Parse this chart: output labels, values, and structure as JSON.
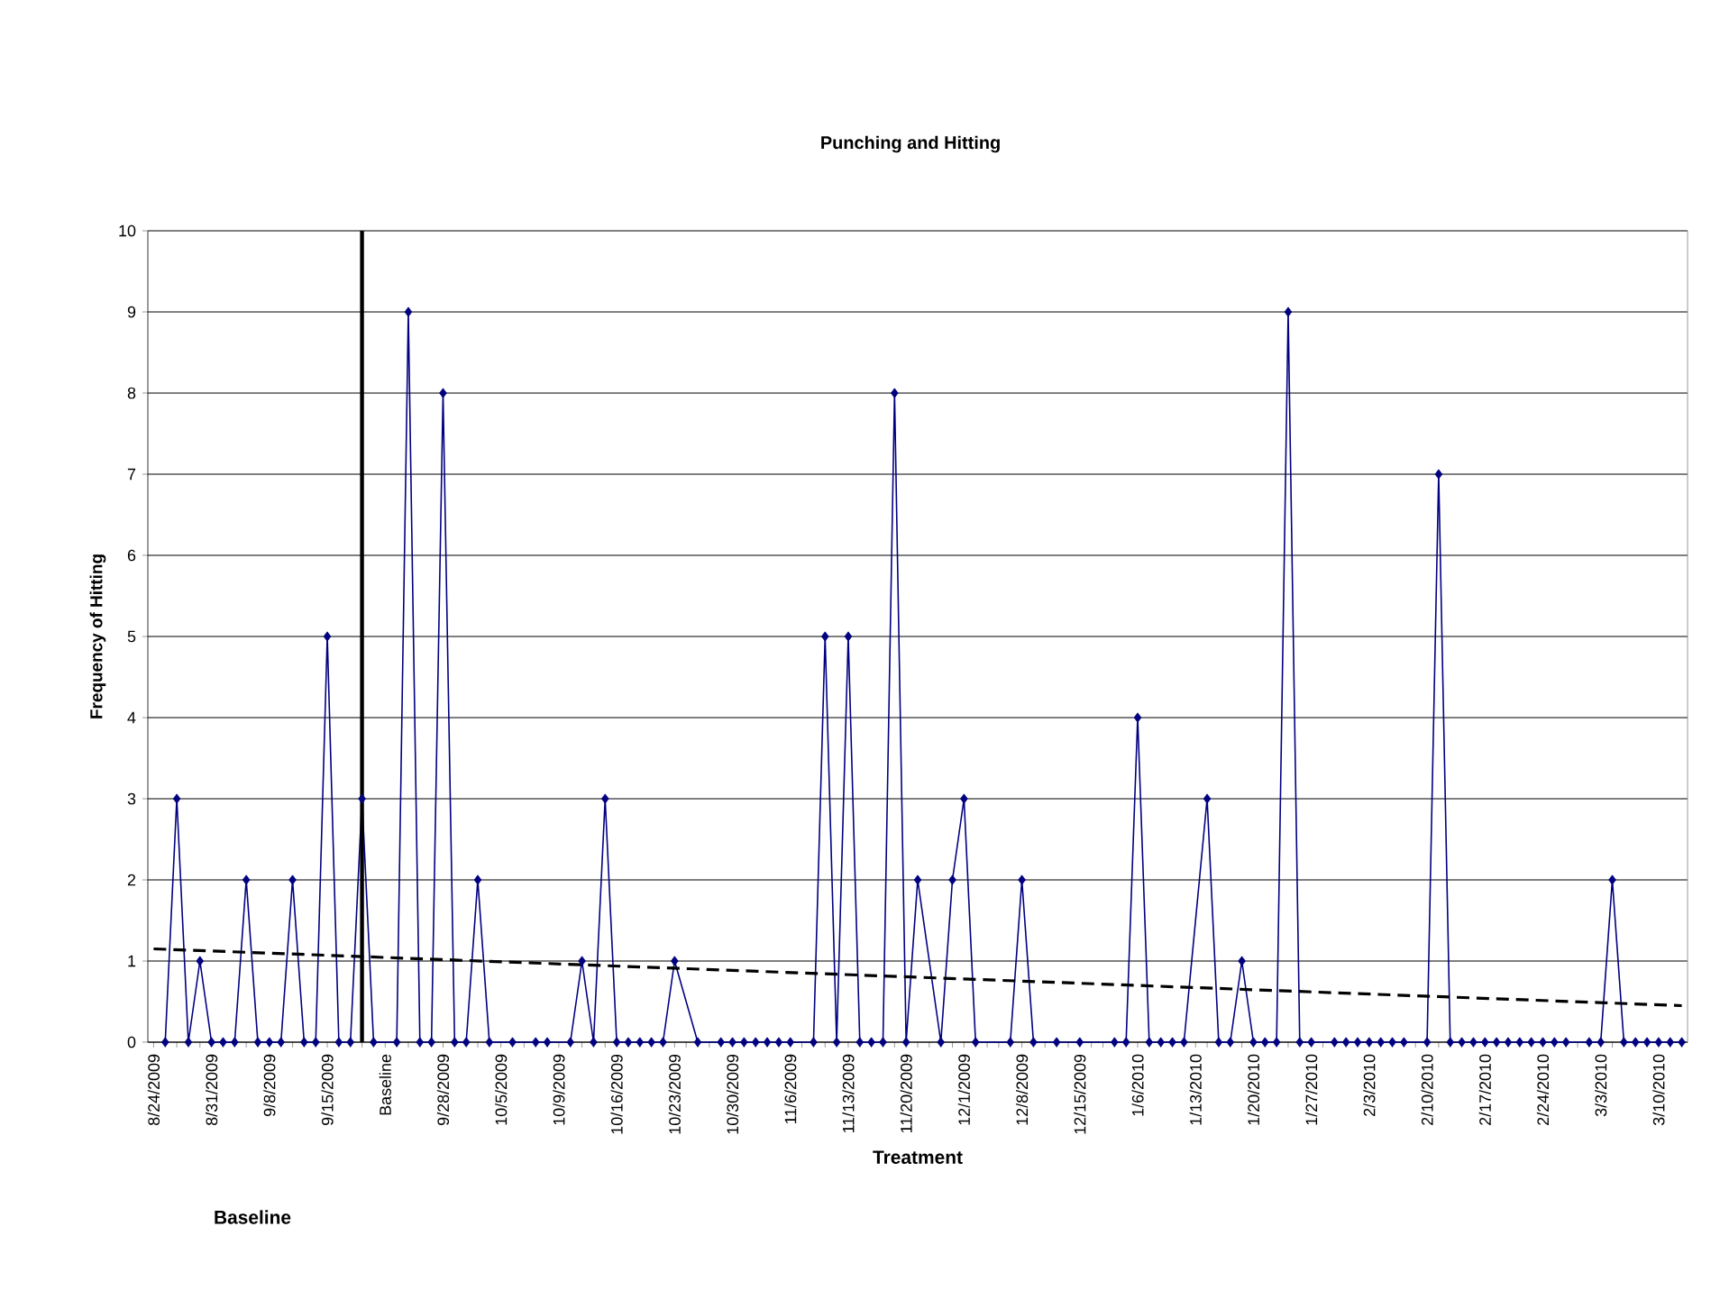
{
  "chart_data": {
    "type": "line",
    "title": "Punching and Hitting",
    "ylabel": "Frequency of Hitting",
    "xlabel": "Treatment",
    "annotations": [
      "Baseline"
    ],
    "categories": [
      "8/24/2009",
      null,
      null,
      null,
      null,
      "8/31/2009",
      null,
      null,
      null,
      null,
      "9/8/2009",
      null,
      null,
      null,
      null,
      "9/15/2009",
      null,
      null,
      null,
      null,
      "Baseline",
      null,
      null,
      null,
      null,
      "9/28/2009",
      null,
      null,
      null,
      null,
      "10/5/2009",
      null,
      null,
      null,
      null,
      "10/9/2009",
      null,
      null,
      null,
      null,
      "10/16/2009",
      null,
      null,
      null,
      null,
      "10/23/2009",
      null,
      null,
      null,
      null,
      "10/30/2009",
      null,
      null,
      null,
      null,
      "11/6/2009",
      null,
      null,
      null,
      null,
      "11/13/2009",
      null,
      null,
      null,
      null,
      "11/20/2009",
      null,
      null,
      null,
      null,
      "12/1/2009",
      null,
      null,
      null,
      null,
      "12/8/2009",
      null,
      null,
      null,
      null,
      "12/15/2009",
      null,
      null,
      null,
      null,
      "1/6/2010",
      null,
      null,
      null,
      null,
      "1/13/2010",
      null,
      null,
      null,
      null,
      "1/20/2010",
      null,
      null,
      null,
      null,
      "1/27/2010",
      null,
      null,
      null,
      null,
      "2/3/2010",
      null,
      null,
      null,
      null,
      "2/10/2010",
      null,
      null,
      null,
      null,
      "2/17/2010",
      null,
      null,
      null,
      null,
      "2/24/2010",
      null,
      null,
      null,
      null,
      "3/3/2010",
      null,
      null,
      null,
      null,
      "3/10/2010",
      null,
      null
    ],
    "series": [
      {
        "color": "#000080",
        "marker": "diamond",
        "line_style": "solid",
        "values": [
          null,
          0,
          3,
          0,
          1,
          0,
          0,
          0,
          2,
          0,
          0,
          0,
          2,
          0,
          0,
          5,
          0,
          0,
          3,
          0,
          null,
          0,
          9,
          0,
          0,
          8,
          0,
          0,
          2,
          0,
          null,
          0,
          null,
          0,
          0,
          null,
          0,
          1,
          0,
          3,
          0,
          0,
          0,
          0,
          0,
          1,
          null,
          0,
          null,
          0,
          0,
          0,
          0,
          0,
          0,
          0,
          null,
          0,
          5,
          0,
          5,
          0,
          0,
          0,
          8,
          0,
          2,
          null,
          0,
          2,
          3,
          0,
          null,
          null,
          0,
          2,
          0,
          null,
          0,
          null,
          0,
          null,
          null,
          0,
          0,
          4,
          0,
          0,
          0,
          0,
          null,
          3,
          0,
          0,
          1,
          0,
          0,
          0,
          9,
          0,
          0,
          null,
          0,
          0,
          0,
          0,
          0,
          0,
          0,
          null,
          0,
          7,
          0,
          0,
          0,
          0,
          0,
          0,
          0,
          0,
          0,
          0,
          0,
          null,
          0,
          0,
          2,
          0,
          0,
          0,
          0,
          0,
          0
        ]
      },
      {
        "type": "line",
        "color": "#000000",
        "marker": "none",
        "line_style": "dashed",
        "values": [
          1.15,
          null,
          null,
          null,
          null,
          null,
          null,
          null,
          null,
          null,
          null,
          null,
          null,
          null,
          null,
          null,
          null,
          null,
          null,
          null,
          null,
          null,
          null,
          null,
          null,
          null,
          null,
          null,
          null,
          null,
          null,
          null,
          null,
          null,
          null,
          null,
          null,
          null,
          null,
          null,
          null,
          null,
          null,
          null,
          null,
          null,
          null,
          null,
          null,
          null,
          null,
          null,
          null,
          null,
          null,
          null,
          null,
          null,
          null,
          null,
          null,
          null,
          null,
          null,
          null,
          null,
          null,
          null,
          null,
          null,
          null,
          null,
          null,
          null,
          null,
          null,
          null,
          null,
          null,
          null,
          null,
          null,
          null,
          null,
          null,
          null,
          null,
          null,
          null,
          null,
          null,
          null,
          null,
          null,
          null,
          null,
          null,
          null,
          null,
          null,
          null,
          null,
          null,
          null,
          null,
          null,
          null,
          null,
          null,
          null,
          null,
          null,
          null,
          null,
          null,
          null,
          null,
          null,
          null,
          null,
          null,
          null,
          null,
          null,
          null,
          null,
          null,
          null,
          null,
          null,
          null,
          null,
          0.45
        ]
      }
    ],
    "ylim": [
      0,
      10
    ],
    "yticks": [
      0,
      1,
      2,
      3,
      4,
      5,
      6,
      7,
      8,
      9,
      10
    ],
    "grid": "y"
  }
}
